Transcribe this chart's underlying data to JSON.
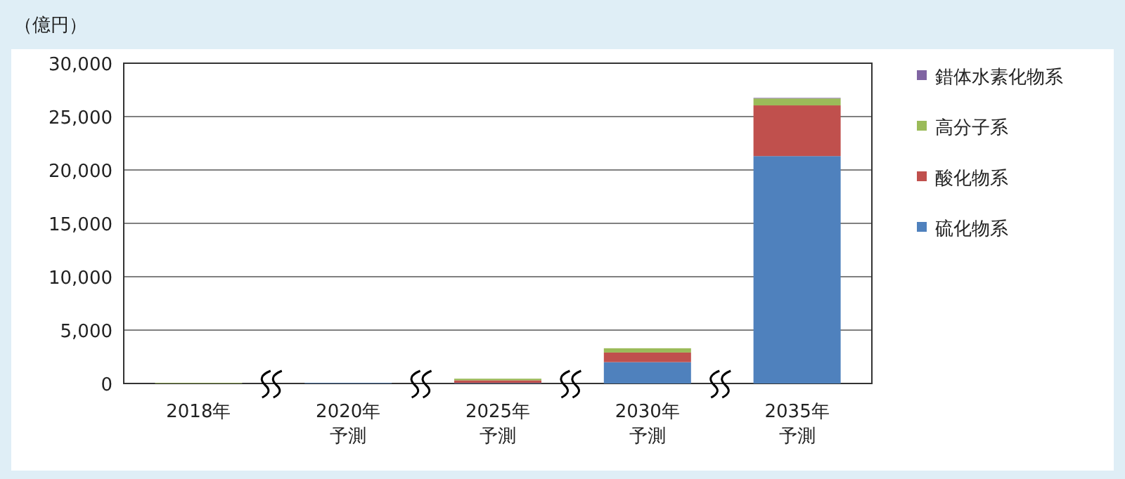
{
  "chart_data": {
    "type": "bar",
    "stacked": true,
    "ylabel": "（億円）",
    "categories": [
      "2018年",
      "2020年予測",
      "2025年予測",
      "2030年予測",
      "2035年予測"
    ],
    "series": [
      {
        "name": "硫化物系",
        "color": "#4f81bd",
        "values": [
          0,
          50,
          50,
          2000,
          21300
        ]
      },
      {
        "name": "酸化物系",
        "color": "#c0504d",
        "values": [
          0,
          0,
          250,
          900,
          4750
        ]
      },
      {
        "name": "高分子系",
        "color": "#9bbb59",
        "values": [
          50,
          0,
          150,
          400,
          650
        ]
      },
      {
        "name": "錯体水素化物系",
        "color": "#8064a2",
        "values": [
          0,
          0,
          0,
          0,
          50
        ]
      }
    ],
    "ylim": [
      0,
      30000
    ],
    "yticks": [
      0,
      {
        "value": 5000,
        "label": "5,000"
      },
      {
        "value": 10000,
        "label": "10,000"
      },
      {
        "value": 15000,
        "label": "15,000"
      },
      {
        "value": 20000,
        "label": "20,000"
      },
      {
        "value": 25000,
        "label": "25,000"
      },
      {
        "value": 30000,
        "label": "30,000"
      }
    ],
    "grid": "y",
    "legend": "right"
  }
}
